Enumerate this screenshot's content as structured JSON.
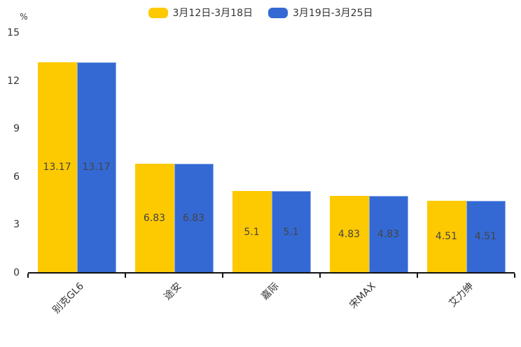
{
  "chart_data": {
    "type": "bar",
    "title": "",
    "ylabel": "%",
    "xlabel": "",
    "categories": [
      "别克GL6",
      "途安",
      "嘉际",
      "宋MAX",
      "艾力绅"
    ],
    "series": [
      {
        "name": "3月12日-3月18日",
        "color": "#FDC901",
        "values": [
          13.17,
          6.83,
          5.1,
          4.83,
          4.51
        ]
      },
      {
        "name": "3月19日-3月25日",
        "color": "#3469D4",
        "values": [
          13.17,
          6.83,
          5.1,
          4.83,
          4.51
        ]
      }
    ],
    "ylim": [
      0,
      15
    ],
    "yticks": [
      0,
      3,
      6,
      9,
      12,
      15
    ],
    "legend_position": "top",
    "grid": false,
    "bar_labels_visible": true
  }
}
